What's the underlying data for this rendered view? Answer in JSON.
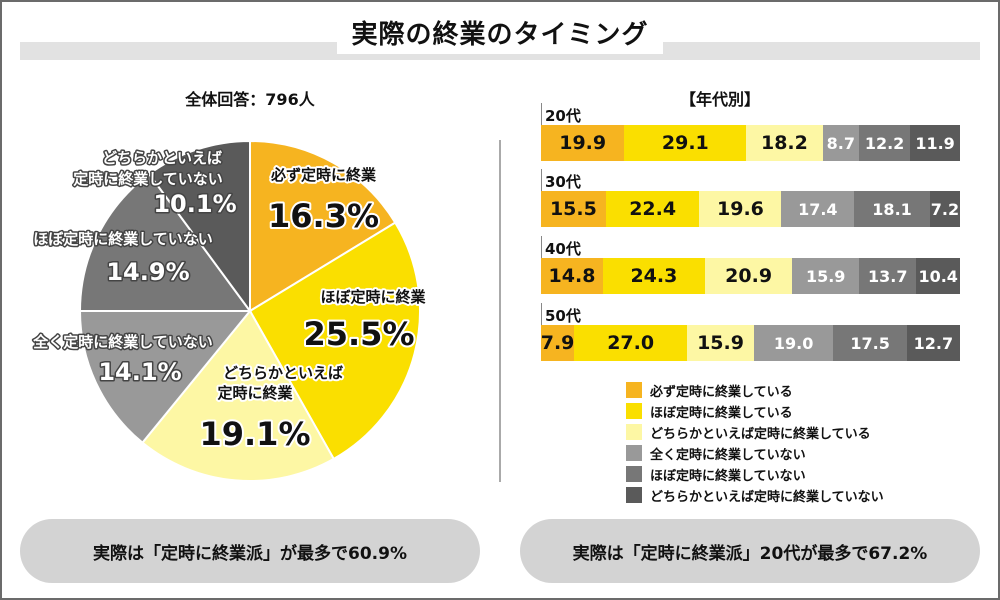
{
  "title": "実際の終業のタイミング",
  "pie_subtitle": "全体回答：796人",
  "bar_subtitle": "【年代別】",
  "pill_left": "実際は「定時に終業派」が最多で60.9%",
  "pill_right": "実際は「定時に終業派」20代が最多で67.2%",
  "colors": [
    "#f6b420",
    "#fadf00",
    "#fdf7a4",
    "#999999",
    "#777777",
    "#5a5a5a"
  ],
  "chart_data": [
    {
      "type": "pie",
      "slices": [
        {
          "label": "必ず定時に終業",
          "value": 16.3,
          "value_label": "16.3%"
        },
        {
          "label": "ほぼ定時に終業",
          "value": 25.5,
          "value_label": "25.5%"
        },
        {
          "label": "どちらかといえば定時に終業",
          "value": 19.1,
          "value_label": "19.1%"
        },
        {
          "label": "全く定時に終業していない",
          "value": 14.1,
          "value_label": "14.1%"
        },
        {
          "label": "ほぼ定時に終業していない",
          "value": 14.9,
          "value_label": "14.9%"
        },
        {
          "label": "どちらかといえば定時に終業していない",
          "value": 10.1,
          "value_label": "10.1%"
        }
      ]
    },
    {
      "type": "bar",
      "stacked": true,
      "orientation": "horizontal",
      "categories": [
        "20代",
        "30代",
        "40代",
        "50代"
      ],
      "series": [
        {
          "name": "必ず定時に終業している",
          "values": [
            19.9,
            15.5,
            14.8,
            7.9
          ]
        },
        {
          "name": "ほぼ定時に終業している",
          "values": [
            29.1,
            22.4,
            24.3,
            27.0
          ]
        },
        {
          "name": "どちらかといえば定時に終業している",
          "values": [
            18.2,
            19.6,
            20.9,
            15.9
          ]
        },
        {
          "name": "全く定時に終業していない",
          "values": [
            8.7,
            17.4,
            15.9,
            19.0
          ]
        },
        {
          "name": "ほぼ定時に終業していない",
          "values": [
            12.2,
            18.1,
            13.7,
            17.5
          ]
        },
        {
          "name": "どちらかといえば定時に終業していない",
          "values": [
            11.9,
            7.2,
            10.4,
            12.7
          ]
        }
      ],
      "value_labels": [
        [
          "19.9",
          "29.1",
          "18.2",
          "8.7",
          "12.2",
          "11.9"
        ],
        [
          "15.5",
          "22.4",
          "19.6",
          "17.4",
          "18.1",
          "7.2"
        ],
        [
          "14.8",
          "24.3",
          "20.9",
          "15.9",
          "13.7",
          "10.4"
        ],
        [
          "7.9",
          "27.0",
          "15.9",
          "19.0",
          "17.5",
          "12.7"
        ]
      ],
      "legend_position": "bottom"
    }
  ]
}
